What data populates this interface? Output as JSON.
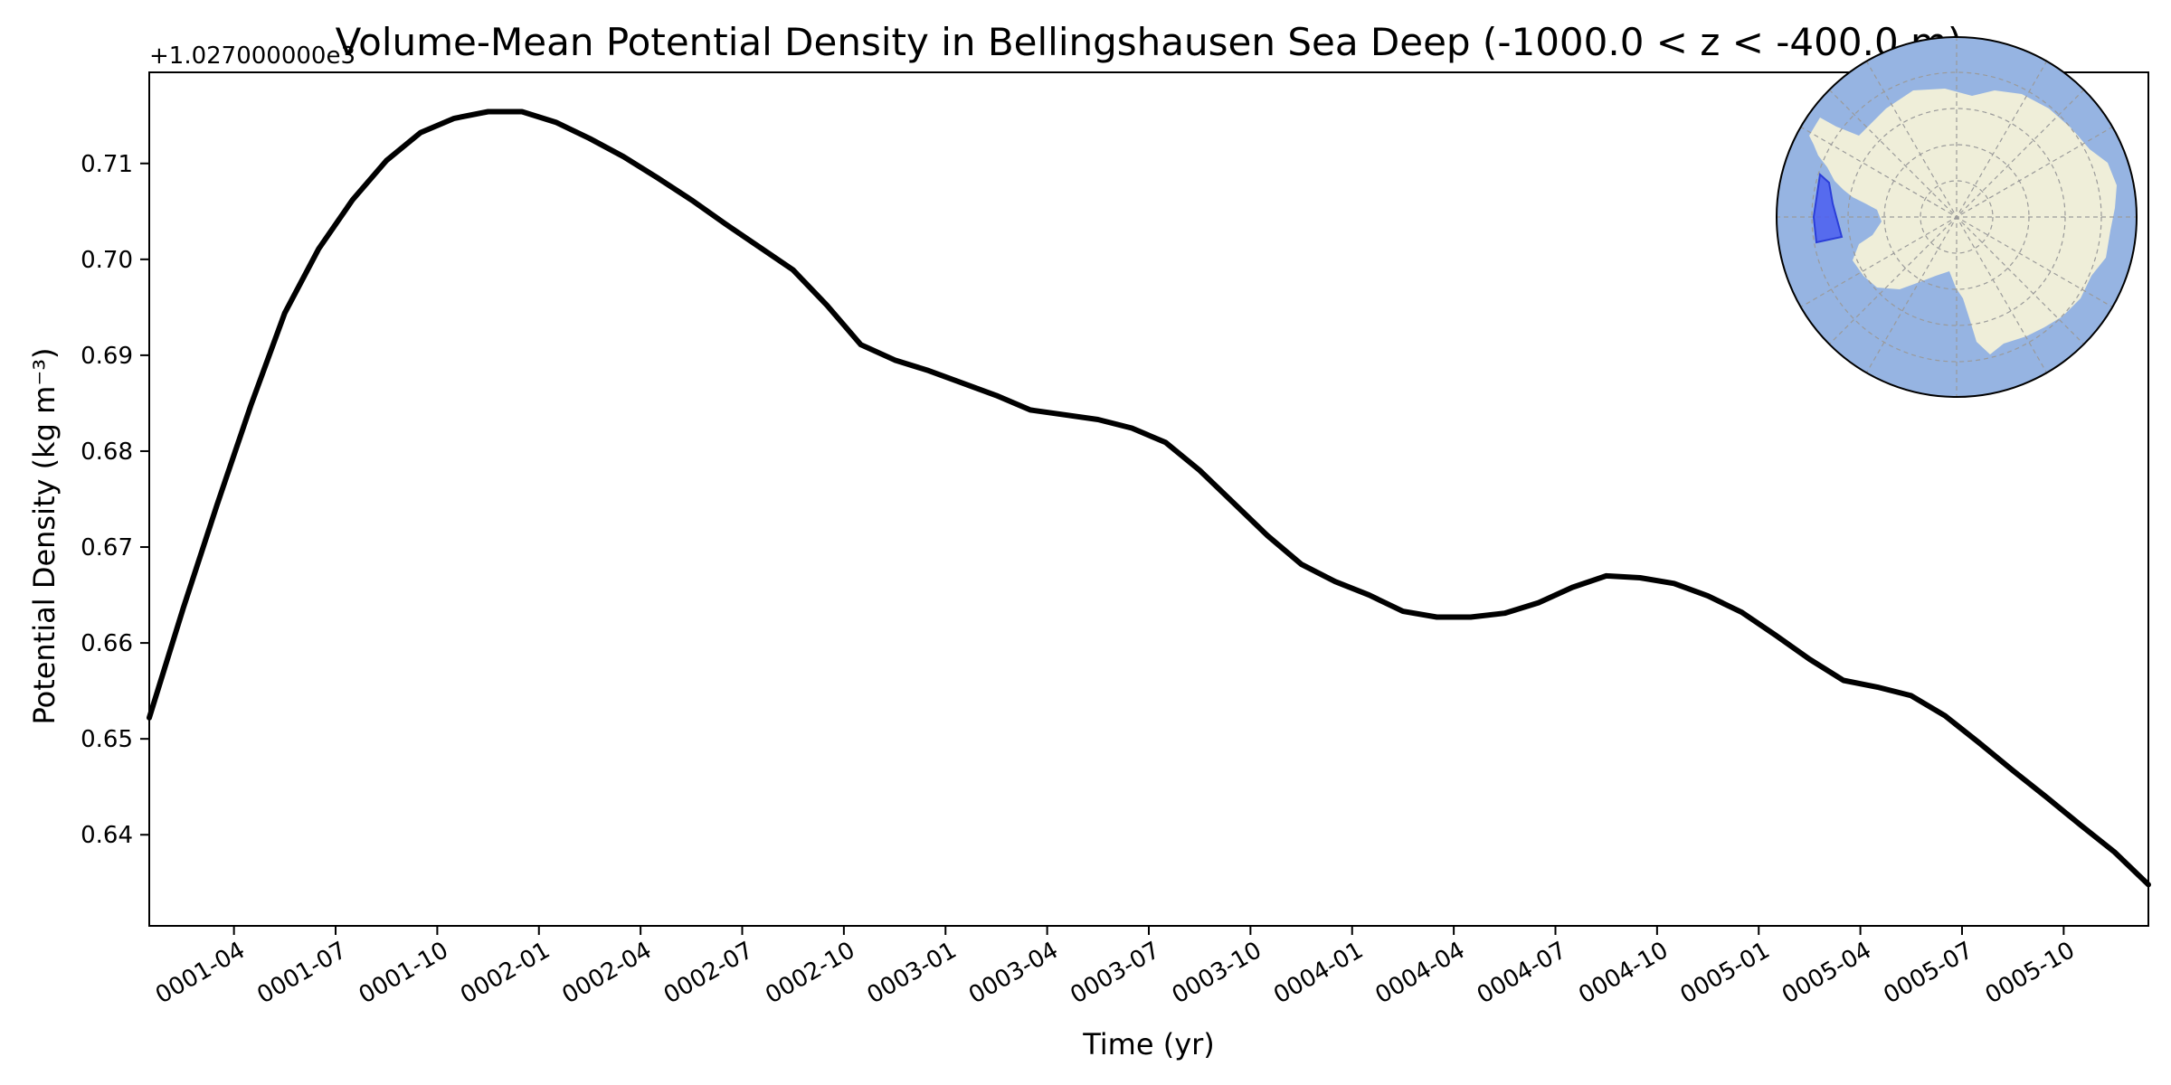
{
  "chart_data": {
    "type": "line",
    "title": "Volume-Mean Potential Density in Bellingshausen Sea Deep (-1000.0 < z < -400.0 m)",
    "xlabel": "Time (yr)",
    "ylabel": "Potential Density (kg m⁻³)",
    "offset_label": "+1.027000000e3",
    "xlim": [
      0.0,
      59.0
    ],
    "ylim": [
      0.6305,
      0.7195
    ],
    "x_ticks": [
      {
        "label": "0001-04",
        "x": 2.5
      },
      {
        "label": "0001-07",
        "x": 5.5
      },
      {
        "label": "0001-10",
        "x": 8.5
      },
      {
        "label": "0002-01",
        "x": 11.5
      },
      {
        "label": "0002-04",
        "x": 14.5
      },
      {
        "label": "0002-07",
        "x": 17.5
      },
      {
        "label": "0002-10",
        "x": 20.5
      },
      {
        "label": "0003-01",
        "x": 23.5
      },
      {
        "label": "0003-04",
        "x": 26.5
      },
      {
        "label": "0003-07",
        "x": 29.5
      },
      {
        "label": "0003-10",
        "x": 32.5
      },
      {
        "label": "0004-01",
        "x": 35.5
      },
      {
        "label": "0004-04",
        "x": 38.5
      },
      {
        "label": "0004-07",
        "x": 41.5
      },
      {
        "label": "0004-10",
        "x": 44.5
      },
      {
        "label": "0005-01",
        "x": 47.5
      },
      {
        "label": "0005-04",
        "x": 50.5
      },
      {
        "label": "0005-07",
        "x": 53.5
      },
      {
        "label": "0005-10",
        "x": 56.5
      }
    ],
    "y_ticks": [
      {
        "label": "0.64",
        "y": 0.64
      },
      {
        "label": "0.65",
        "y": 0.65
      },
      {
        "label": "0.66",
        "y": 0.66
      },
      {
        "label": "0.67",
        "y": 0.67
      },
      {
        "label": "0.68",
        "y": 0.68
      },
      {
        "label": "0.69",
        "y": 0.69
      },
      {
        "label": "0.70",
        "y": 0.7
      },
      {
        "label": "0.71",
        "y": 0.71
      }
    ],
    "series": [
      {
        "name": "Bellingshausen Sea Deep",
        "color": "#000000",
        "x": [
          0,
          1,
          2,
          3,
          4,
          5,
          6,
          7,
          8,
          9,
          10,
          11,
          12,
          13,
          14,
          15,
          16,
          17,
          18,
          19,
          20,
          21,
          22,
          23,
          24,
          25,
          26,
          27,
          28,
          29,
          30,
          31,
          32,
          33,
          34,
          35,
          36,
          37,
          38,
          39,
          40,
          41,
          42,
          43,
          44,
          45,
          46,
          47,
          48,
          49,
          50,
          51,
          52,
          53,
          54,
          55,
          56,
          57,
          58,
          59
        ],
        "y": [
          0.6522,
          0.6636,
          0.6744,
          0.6848,
          0.6944,
          0.7011,
          0.7062,
          0.7103,
          0.7132,
          0.7147,
          0.7154,
          0.7154,
          0.7143,
          0.7126,
          0.7107,
          0.7085,
          0.7062,
          0.7037,
          0.7013,
          0.6989,
          0.6952,
          0.6911,
          0.6895,
          0.6884,
          0.6871,
          0.6858,
          0.6843,
          0.6838,
          0.6833,
          0.6824,
          0.6809,
          0.678,
          0.6746,
          0.6712,
          0.6682,
          0.6664,
          0.665,
          0.6633,
          0.6627,
          0.6627,
          0.6631,
          0.6642,
          0.6658,
          0.667,
          0.6668,
          0.6662,
          0.6649,
          0.6632,
          0.6608,
          0.6583,
          0.6561,
          0.6554,
          0.6545,
          0.6524,
          0.6496,
          0.6467,
          0.6439,
          0.641,
          0.6382,
          0.6348
        ]
      }
    ]
  },
  "inset_map": {
    "ocean_color": "#96b4e2",
    "land_color": "#efeed9",
    "region_color": "#4b5ef0"
  }
}
